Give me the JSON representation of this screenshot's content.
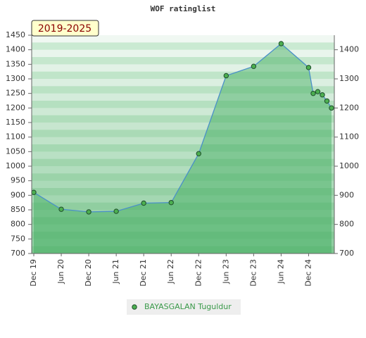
{
  "chart_data": {
    "type": "line",
    "title": "WOF ratinglist",
    "badge": "2019-2025",
    "series": [
      {
        "name": "BAYASGALAN Tuguldur",
        "color": "#4caf50",
        "line_color": "#4a90c8",
        "area_color": "#3caa5a",
        "x": [
          "2019-12",
          "2020-06",
          "2020-12",
          "2021-06",
          "2021-12",
          "2022-06",
          "2022-12",
          "2023-06",
          "2023-12",
          "2024-06",
          "2024-12",
          "2025-01",
          "2025-02",
          "2025-03",
          "2025-04",
          "2025-05"
        ],
        "values": [
          910,
          852,
          843,
          845,
          873,
          875,
          1043,
          1311,
          1343,
          1421,
          1339,
          1250,
          1256,
          1245,
          1224,
          1200
        ]
      }
    ],
    "xlim": [
      "2019-12",
      "2025-05"
    ],
    "xticks": [
      {
        "value": "2019-12",
        "label": "Dec 19"
      },
      {
        "value": "2020-06",
        "label": "Jun 20"
      },
      {
        "value": "2020-12",
        "label": "Dec 20"
      },
      {
        "value": "2021-06",
        "label": "Jun 21"
      },
      {
        "value": "2021-12",
        "label": "Dec 21"
      },
      {
        "value": "2022-06",
        "label": "Jun 22"
      },
      {
        "value": "2022-12",
        "label": "Dec 22"
      },
      {
        "value": "2023-06",
        "label": "Jun 23"
      },
      {
        "value": "2023-12",
        "label": "Dec 23"
      },
      {
        "value": "2024-06",
        "label": "Jun 24"
      },
      {
        "value": "2024-12",
        "label": "Dec 24"
      }
    ],
    "ylim": [
      700,
      1450
    ],
    "yticks": [
      700,
      750,
      800,
      850,
      900,
      950,
      1000,
      1050,
      1100,
      1150,
      1200,
      1250,
      1300,
      1350,
      1400,
      1450
    ],
    "y2lim": [
      700,
      1450
    ],
    "y2ticks": [
      700,
      800,
      900,
      1000,
      1100,
      1200,
      1300,
      1400
    ]
  }
}
